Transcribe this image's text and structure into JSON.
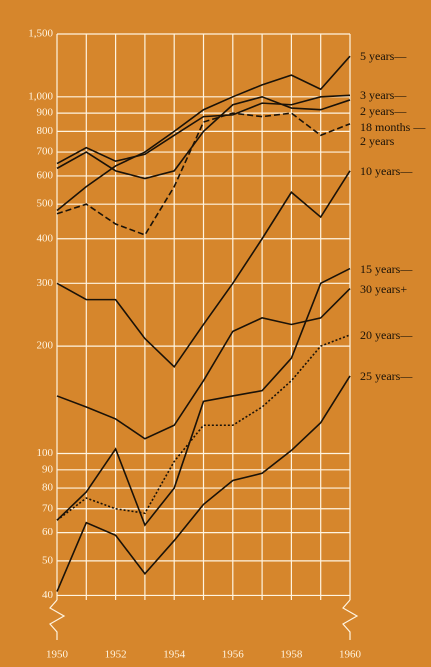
{
  "chart_data": {
    "type": "line",
    "log_y": true,
    "grid": true,
    "background": "#d6862c",
    "grid_color": "#fff4e0",
    "x": [
      1950,
      1951,
      1952,
      1953,
      1954,
      1955,
      1956,
      1957,
      1958,
      1959,
      1960
    ],
    "xlim": [
      1950,
      1960
    ],
    "xticks": [
      1950,
      1952,
      1954,
      1956,
      1958,
      1960
    ],
    "ylim": [
      30,
      1500
    ],
    "yticks": [
      40,
      50,
      60,
      70,
      80,
      90,
      100,
      200,
      300,
      400,
      500,
      600,
      700,
      800,
      900,
      {
        "value": 1000,
        "label": "1,000"
      },
      {
        "value": 1500,
        "label": "1,500"
      }
    ],
    "series": [
      {
        "name": "5 years—",
        "color": "#1a1208",
        "dash": "none",
        "values": [
          480,
          560,
          640,
          700,
          800,
          920,
          1000,
          1080,
          1150,
          1050,
          1300
        ]
      },
      {
        "name": "3 years—",
        "color": "#1a1208",
        "dash": "none",
        "values": [
          650,
          720,
          660,
          690,
          780,
          880,
          890,
          960,
          950,
          1000,
          1010
        ]
      },
      {
        "name": "2 years—",
        "color": "#1a1208",
        "dash": "none",
        "values": [
          630,
          700,
          620,
          590,
          620,
          800,
          950,
          1000,
          930,
          920,
          980
        ]
      },
      {
        "name": "18 months —2 years",
        "color": "#1a1208",
        "dash": "6 3",
        "values": [
          470,
          500,
          440,
          410,
          560,
          850,
          900,
          880,
          900,
          780,
          840
        ]
      },
      {
        "name": "10 years—",
        "color": "#1a1208",
        "dash": "none",
        "values": [
          300,
          270,
          270,
          210,
          175,
          230,
          300,
          400,
          540,
          460,
          620
        ]
      },
      {
        "name": "15 years—",
        "color": "#1a1208",
        "dash": "none",
        "values": [
          65,
          78,
          103,
          63,
          80,
          140,
          145,
          150,
          185,
          300,
          330
        ]
      },
      {
        "name": "30 years+",
        "color": "#1a1208",
        "dash": "none",
        "values": [
          145,
          135,
          125,
          110,
          120,
          160,
          220,
          240,
          230,
          240,
          290
        ]
      },
      {
        "name": "20 years—",
        "color": "#1a1208",
        "dash": "2 2",
        "values": [
          65,
          75,
          70,
          68,
          95,
          120,
          120,
          135,
          160,
          200,
          215
        ]
      },
      {
        "name": "25 years—",
        "color": "#1a1208",
        "dash": "none",
        "values": [
          41,
          64,
          59,
          46,
          57,
          72,
          84,
          88,
          102,
          122,
          165
        ]
      }
    ]
  }
}
